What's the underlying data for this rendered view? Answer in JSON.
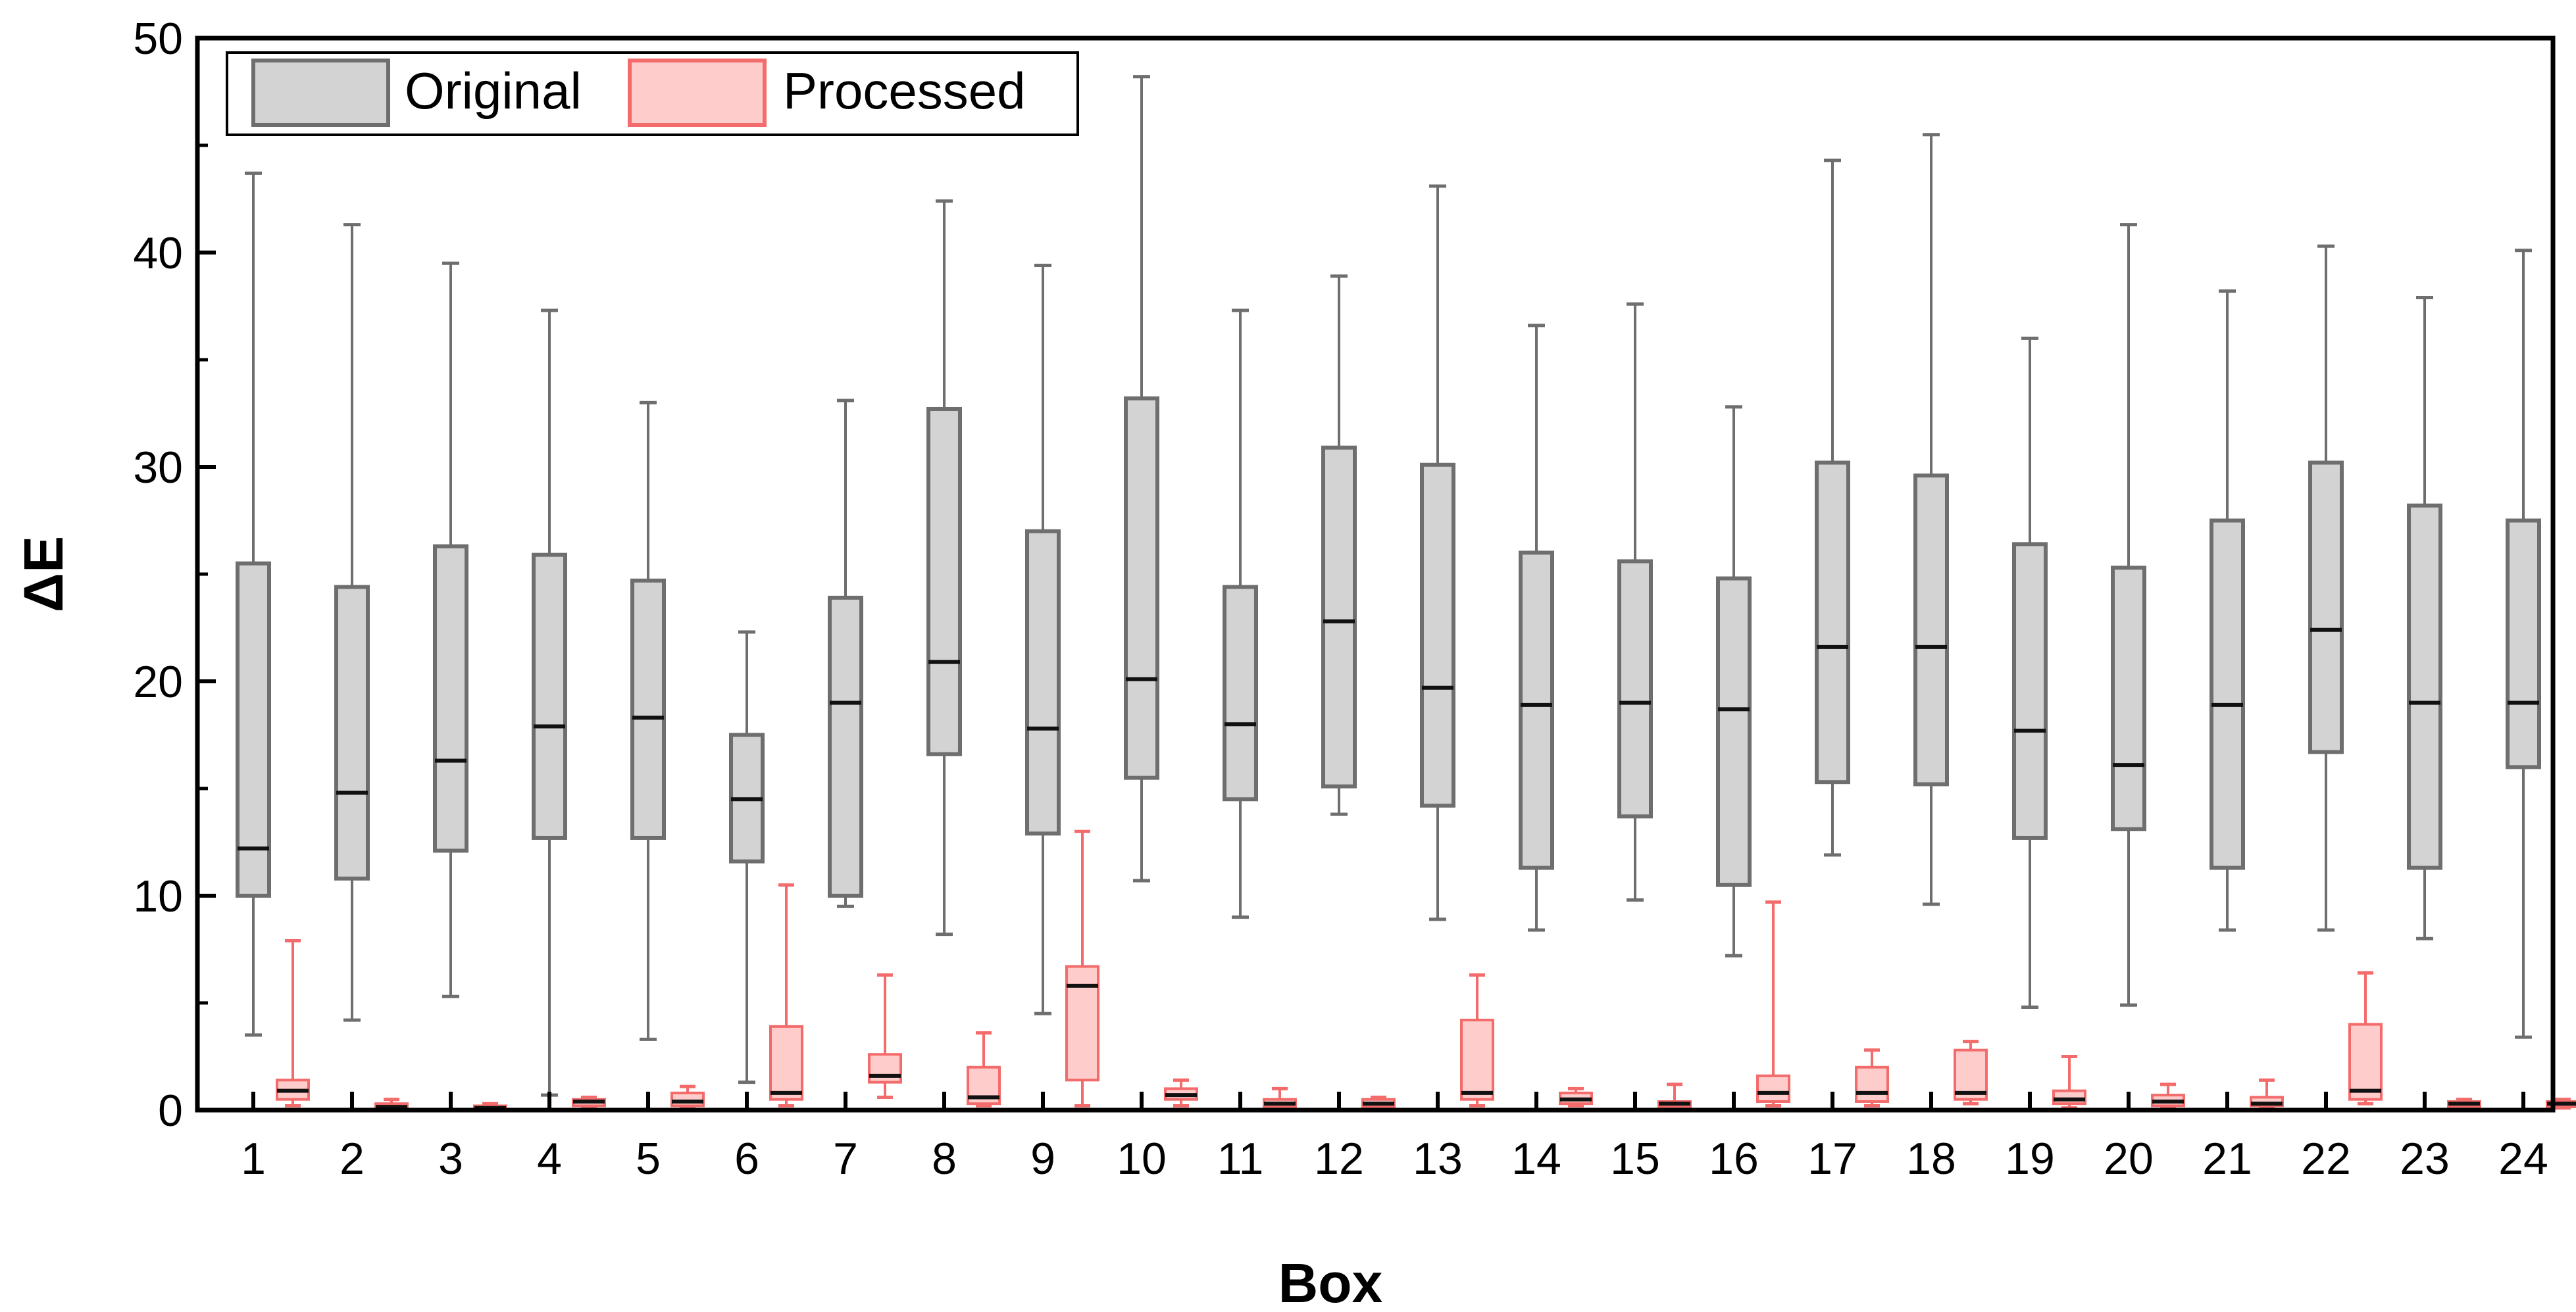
{
  "chart_data": {
    "type": "boxplot",
    "title": "",
    "xlabel": "Box",
    "ylabel": "ΔE",
    "ylim": [
      0,
      50
    ],
    "yticks": [
      0,
      10,
      20,
      30,
      40,
      50
    ],
    "categories": [
      "1",
      "2",
      "3",
      "4",
      "5",
      "6",
      "7",
      "8",
      "9",
      "10",
      "11",
      "12",
      "13",
      "14",
      "15",
      "16",
      "17",
      "18",
      "19",
      "20",
      "21",
      "22",
      "23",
      "24"
    ],
    "legend": {
      "position": "top-left",
      "entries": [
        "Original",
        "Processed"
      ]
    },
    "series": [
      {
        "name": "Original",
        "color": "#6e6e6e",
        "fill": "#d3d3d3",
        "boxes": [
          {
            "min": 3.5,
            "q1": 10.0,
            "median": 12.2,
            "q3": 25.5,
            "max": 43.7
          },
          {
            "min": 4.2,
            "q1": 10.8,
            "median": 14.8,
            "q3": 24.4,
            "max": 41.3
          },
          {
            "min": 5.3,
            "q1": 12.1,
            "median": 16.3,
            "q3": 26.3,
            "max": 39.5
          },
          {
            "min": 0.7,
            "q1": 12.7,
            "median": 17.9,
            "q3": 25.9,
            "max": 37.3
          },
          {
            "min": 3.3,
            "q1": 12.7,
            "median": 18.3,
            "q3": 24.7,
            "max": 33.0
          },
          {
            "min": 1.3,
            "q1": 11.6,
            "median": 14.5,
            "q3": 17.5,
            "max": 22.3
          },
          {
            "min": 9.5,
            "q1": 10.0,
            "median": 19.0,
            "q3": 23.9,
            "max": 33.1
          },
          {
            "min": 8.2,
            "q1": 16.6,
            "median": 20.9,
            "q3": 32.7,
            "max": 42.4
          },
          {
            "min": 4.5,
            "q1": 12.9,
            "median": 17.8,
            "q3": 27.0,
            "max": 39.4
          },
          {
            "min": 10.7,
            "q1": 15.5,
            "median": 20.1,
            "q3": 33.2,
            "max": 48.2
          },
          {
            "min": 9.0,
            "q1": 14.5,
            "median": 18.0,
            "q3": 24.4,
            "max": 37.3
          },
          {
            "min": 13.8,
            "q1": 15.1,
            "median": 22.8,
            "q3": 30.9,
            "max": 38.9
          },
          {
            "min": 8.9,
            "q1": 14.2,
            "median": 19.7,
            "q3": 30.1,
            "max": 43.1
          },
          {
            "min": 8.4,
            "q1": 11.3,
            "median": 18.9,
            "q3": 26.0,
            "max": 36.6
          },
          {
            "min": 9.8,
            "q1": 13.7,
            "median": 19.0,
            "q3": 25.6,
            "max": 37.6
          },
          {
            "min": 7.2,
            "q1": 10.5,
            "median": 18.7,
            "q3": 24.8,
            "max": 32.8
          },
          {
            "min": 11.9,
            "q1": 15.3,
            "median": 21.6,
            "q3": 30.2,
            "max": 44.3
          },
          {
            "min": 9.6,
            "q1": 15.2,
            "median": 21.6,
            "q3": 29.6,
            "max": 45.5
          },
          {
            "min": 4.8,
            "q1": 12.7,
            "median": 17.7,
            "q3": 26.4,
            "max": 36.0
          },
          {
            "min": 4.9,
            "q1": 13.1,
            "median": 16.1,
            "q3": 25.3,
            "max": 41.3
          },
          {
            "min": 8.4,
            "q1": 11.3,
            "median": 18.9,
            "q3": 27.5,
            "max": 38.2
          },
          {
            "min": 8.4,
            "q1": 16.7,
            "median": 22.4,
            "q3": 30.2,
            "max": 40.3
          },
          {
            "min": 8.0,
            "q1": 11.3,
            "median": 19.0,
            "q3": 28.2,
            "max": 37.9
          },
          {
            "min": 3.4,
            "q1": 16.0,
            "median": 19.0,
            "q3": 27.5,
            "max": 40.1
          }
        ]
      },
      {
        "name": "Processed",
        "color": "#f36b6b",
        "fill": "#ffcccc",
        "boxes": [
          {
            "min": 0.2,
            "q1": 0.5,
            "median": 0.9,
            "q3": 1.4,
            "max": 7.9
          },
          {
            "min": 0.0,
            "q1": 0.05,
            "median": 0.15,
            "q3": 0.3,
            "max": 0.5
          },
          {
            "min": 0.0,
            "q1": 0.05,
            "median": 0.1,
            "q3": 0.2,
            "max": 0.3
          },
          {
            "min": 0.1,
            "q1": 0.2,
            "median": 0.4,
            "q3": 0.5,
            "max": 0.6
          },
          {
            "min": 0.1,
            "q1": 0.2,
            "median": 0.4,
            "q3": 0.8,
            "max": 1.1
          },
          {
            "min": 0.2,
            "q1": 0.5,
            "median": 0.8,
            "q3": 3.9,
            "max": 10.5
          },
          {
            "min": 0.6,
            "q1": 1.3,
            "median": 1.6,
            "q3": 2.6,
            "max": 6.3
          },
          {
            "min": 0.2,
            "q1": 0.3,
            "median": 0.6,
            "q3": 2.0,
            "max": 3.6
          },
          {
            "min": 0.2,
            "q1": 1.4,
            "median": 5.8,
            "q3": 6.7,
            "max": 13.0
          },
          {
            "min": 0.2,
            "q1": 0.5,
            "median": 0.7,
            "q3": 1.0,
            "max": 1.4
          },
          {
            "min": 0.1,
            "q1": 0.15,
            "median": 0.3,
            "q3": 0.5,
            "max": 1.0
          },
          {
            "min": 0.1,
            "q1": 0.15,
            "median": 0.3,
            "q3": 0.5,
            "max": 0.6
          },
          {
            "min": 0.2,
            "q1": 0.5,
            "median": 0.8,
            "q3": 4.2,
            "max": 6.3
          },
          {
            "min": 0.2,
            "q1": 0.3,
            "median": 0.5,
            "q3": 0.8,
            "max": 1.0
          },
          {
            "min": 0.1,
            "q1": 0.15,
            "median": 0.3,
            "q3": 0.4,
            "max": 1.2
          },
          {
            "min": 0.2,
            "q1": 0.4,
            "median": 0.8,
            "q3": 1.6,
            "max": 9.7
          },
          {
            "min": 0.2,
            "q1": 0.4,
            "median": 0.8,
            "q3": 2.0,
            "max": 2.8
          },
          {
            "min": 0.3,
            "q1": 0.5,
            "median": 0.8,
            "q3": 2.8,
            "max": 3.2
          },
          {
            "min": 0.1,
            "q1": 0.3,
            "median": 0.5,
            "q3": 0.9,
            "max": 2.5
          },
          {
            "min": 0.1,
            "q1": 0.2,
            "median": 0.4,
            "q3": 0.7,
            "max": 1.2
          },
          {
            "min": 0.1,
            "q1": 0.2,
            "median": 0.3,
            "q3": 0.6,
            "max": 1.4
          },
          {
            "min": 0.3,
            "q1": 0.5,
            "median": 0.9,
            "q3": 4.0,
            "max": 6.4
          },
          {
            "min": 0.1,
            "q1": 0.15,
            "median": 0.3,
            "q3": 0.4,
            "max": 0.5
          },
          {
            "min": 0.1,
            "q1": 0.15,
            "median": 0.3,
            "q3": 0.4,
            "max": 0.5
          }
        ]
      }
    ]
  }
}
